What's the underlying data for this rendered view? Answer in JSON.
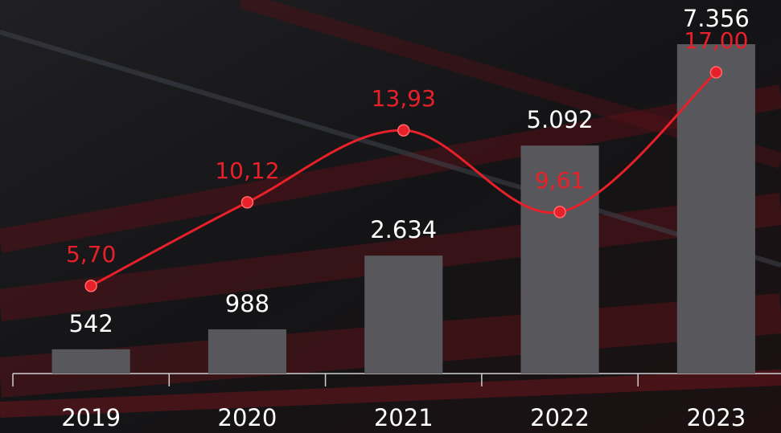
{
  "chart_data": {
    "type": "bar_line",
    "categories": [
      "2019",
      "2020",
      "2021",
      "2022",
      "2023"
    ],
    "series": [
      {
        "type": "bar",
        "color": "#58585c",
        "values": [
          542,
          988,
          2634,
          5092,
          7356
        ],
        "value_labels": [
          "542",
          "988",
          "2.634",
          "5.092",
          "7.356"
        ]
      },
      {
        "type": "line",
        "axis": "y2",
        "color": "#e8202a",
        "values": [
          5.7,
          10.12,
          13.93,
          9.61,
          17.0
        ],
        "value_labels": [
          "5,70",
          "10,12",
          "13,93",
          "9,61",
          "17,00"
        ]
      }
    ]
  }
}
